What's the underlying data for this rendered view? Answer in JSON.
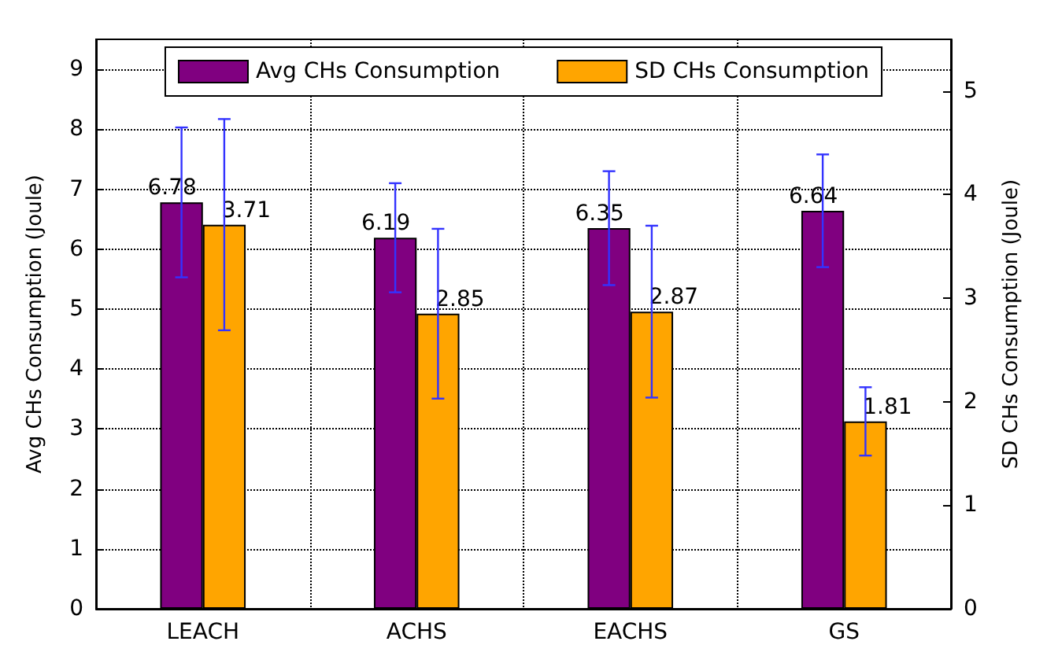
{
  "chart_data": {
    "type": "bar",
    "categories": [
      "LEACH",
      "ACHS",
      "EACHS",
      "GS"
    ],
    "ylabel": "Avg CHs Consumption (Joule)",
    "y2label": "SD CHs Consumption (Joule)",
    "ylim": [
      0,
      9.5
    ],
    "yticks": [
      0,
      1,
      2,
      3,
      4,
      5,
      6,
      7,
      8,
      9
    ],
    "y2lim": [
      0,
      5.5
    ],
    "y2ticks": [
      0,
      1,
      2,
      3,
      4,
      5
    ],
    "grid": true,
    "legend": "top",
    "data_labels": true,
    "series": [
      {
        "name": "Avg CHs Consumption",
        "color": "#800080",
        "values": [
          6.78,
          6.19,
          6.35,
          6.64
        ],
        "errors": [
          1.25,
          0.91,
          0.95,
          0.94
        ]
      },
      {
        "name": "SD CHs Consumption",
        "color": "#ffa500",
        "axis": "y2",
        "values": [
          3.71,
          2.85,
          2.87,
          1.81
        ],
        "errors": [
          1.02,
          0.82,
          0.83,
          0.33
        ]
      }
    ]
  }
}
